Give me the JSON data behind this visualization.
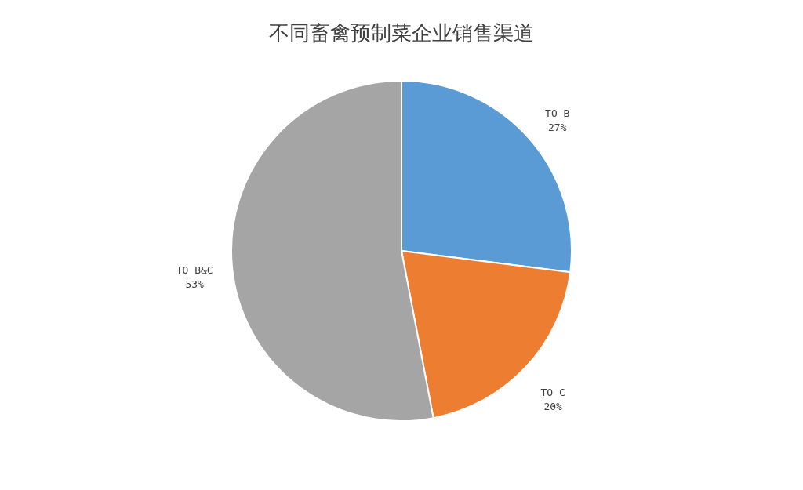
{
  "chart_data": {
    "type": "pie",
    "title": "不同畜禽预制菜企业销售渠道",
    "categories": [
      "TO B",
      "TO C",
      "TO B&C"
    ],
    "values": [
      27,
      20,
      53
    ],
    "colors": [
      "#5b9bd5",
      "#ed7d31",
      "#a5a5a5"
    ],
    "value_labels": [
      "27%",
      "20%",
      "53%"
    ],
    "legend": false
  }
}
